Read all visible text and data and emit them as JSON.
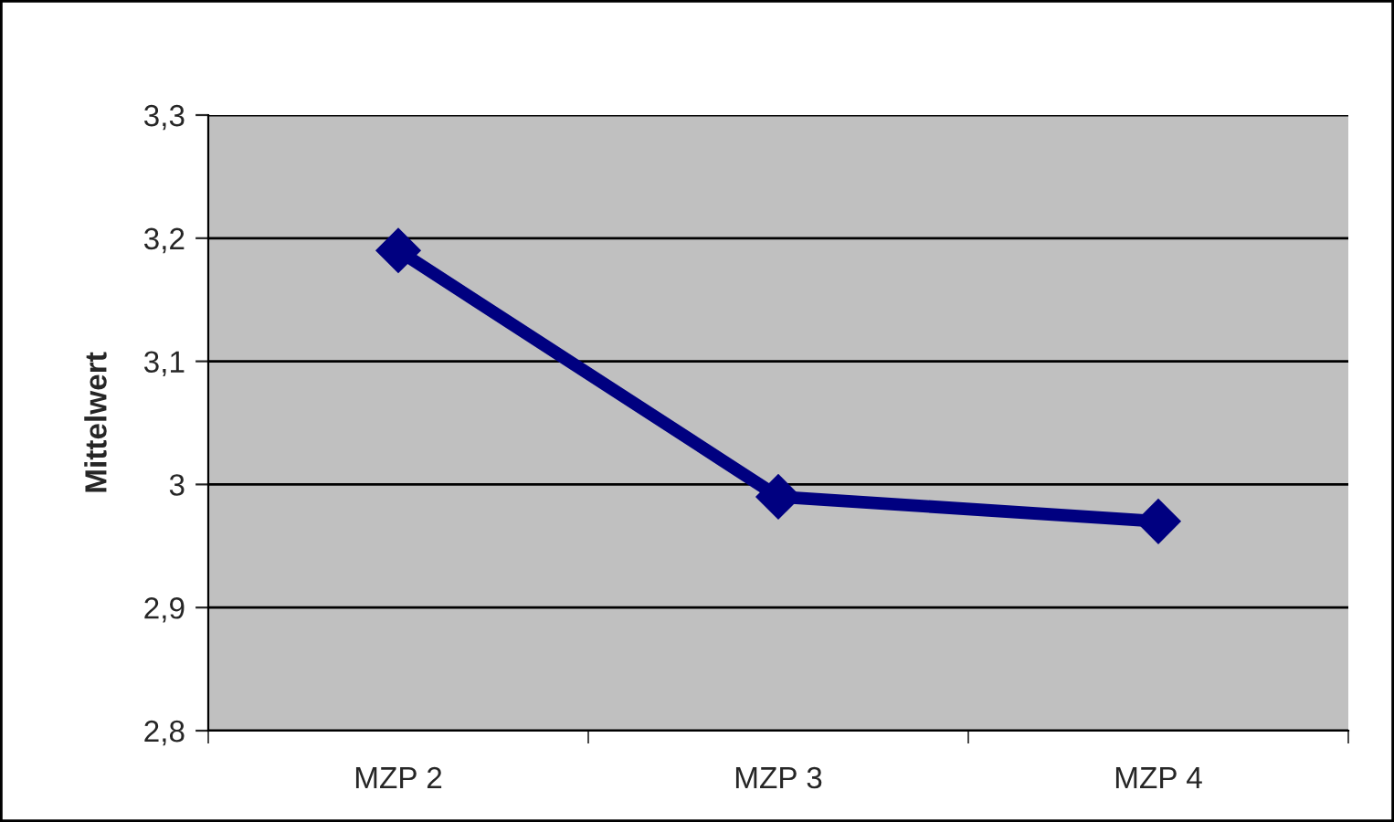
{
  "chart_data": {
    "type": "line",
    "ylabel": "Mittelwert",
    "categories": [
      "MZP 2",
      "MZP 3",
      "MZP 4"
    ],
    "series": [
      {
        "color": "#000080",
        "values": [
          3.19,
          2.99,
          2.97
        ]
      }
    ],
    "ylim": [
      2.8,
      3.3
    ],
    "yticks": [
      {
        "value": 2.8,
        "label": "2,8"
      },
      {
        "value": 2.9,
        "label": "2,9"
      },
      3,
      {
        "value": 3.1,
        "label": "3,1"
      },
      {
        "value": 3.2,
        "label": "3,2"
      },
      {
        "value": 3.3,
        "label": "3,3"
      }
    ],
    "grid": "y",
    "marker": "diamond",
    "line_style": "solid",
    "legend": false
  }
}
